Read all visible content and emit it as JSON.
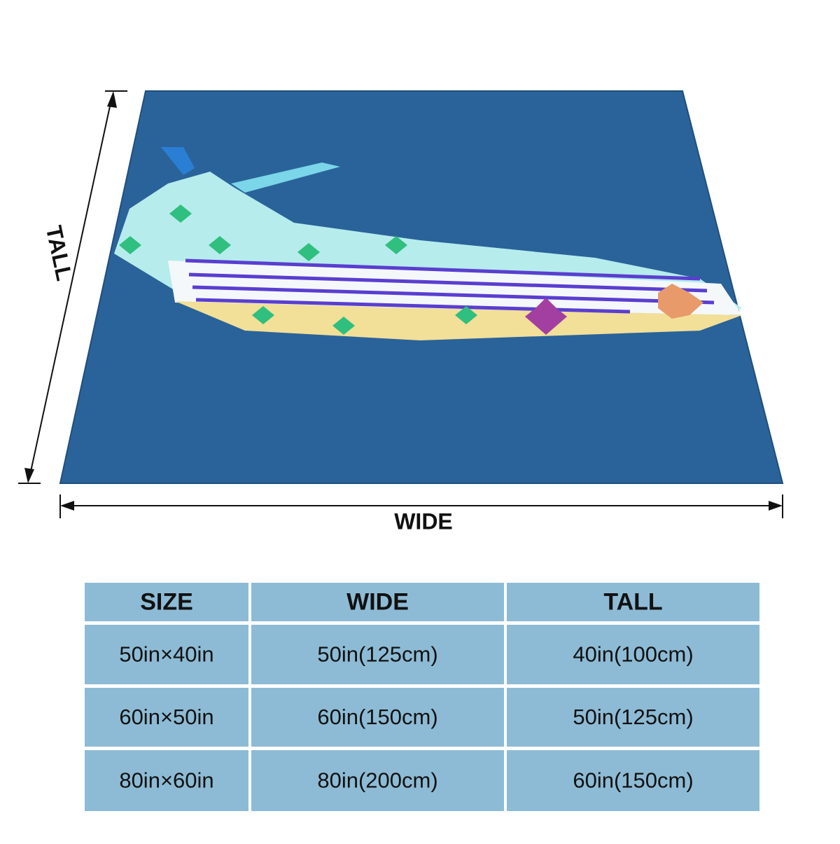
{
  "diagram": {
    "tall_label": "TALL",
    "wide_label": "WIDE"
  },
  "table": {
    "header": [
      "SIZE",
      "WIDE",
      "TALL"
    ],
    "rows": [
      [
        "50in×40in",
        "50in(125cm)",
        "40in(100cm)"
      ],
      [
        "60in×50in",
        "60in(150cm)",
        "50in(125cm)"
      ],
      [
        "80in×60in",
        "80in(200cm)",
        "60in(150cm)"
      ]
    ]
  }
}
